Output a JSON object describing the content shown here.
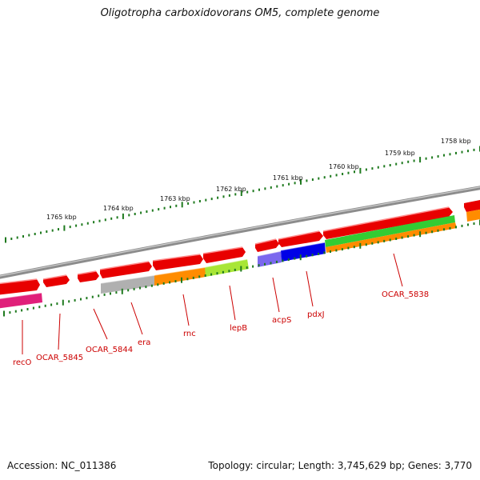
{
  "title": "Oligotropha carboxidovorans OM5, complete genome",
  "footer": {
    "accession": "Accession: NC_011386",
    "summary": "Topology: circular; Length: 3,745,629 bp; Genes: 3,770"
  },
  "kbp_ticks": [
    "1758 kbp",
    "1759 kbp",
    "1760 kbp",
    "1761 kbp",
    "1762 kbp",
    "1763 kbp",
    "1764 kbp",
    "1765 kbp"
  ],
  "gene_labels": [
    "recO",
    "OCAR_5845",
    "OCAR_5844",
    "era",
    "rnc",
    "lepB",
    "acpS",
    "pdxJ",
    "OCAR_5838"
  ],
  "colors": {
    "backbone": "#8c8c8c",
    "forward_gene": "#e80000",
    "recO": "#e0207a",
    "era": "#b0b0b0",
    "rnc": "#ff8c00",
    "lepB": "#a8e636",
    "acpS": "#7b68ee",
    "pdxJ": "#0000e6",
    "OCAR_5838_top": "#33cc33",
    "OCAR_5838_bottom": "#ff8c00",
    "tick": "#1f7a1f",
    "label": "#cc0000"
  }
}
